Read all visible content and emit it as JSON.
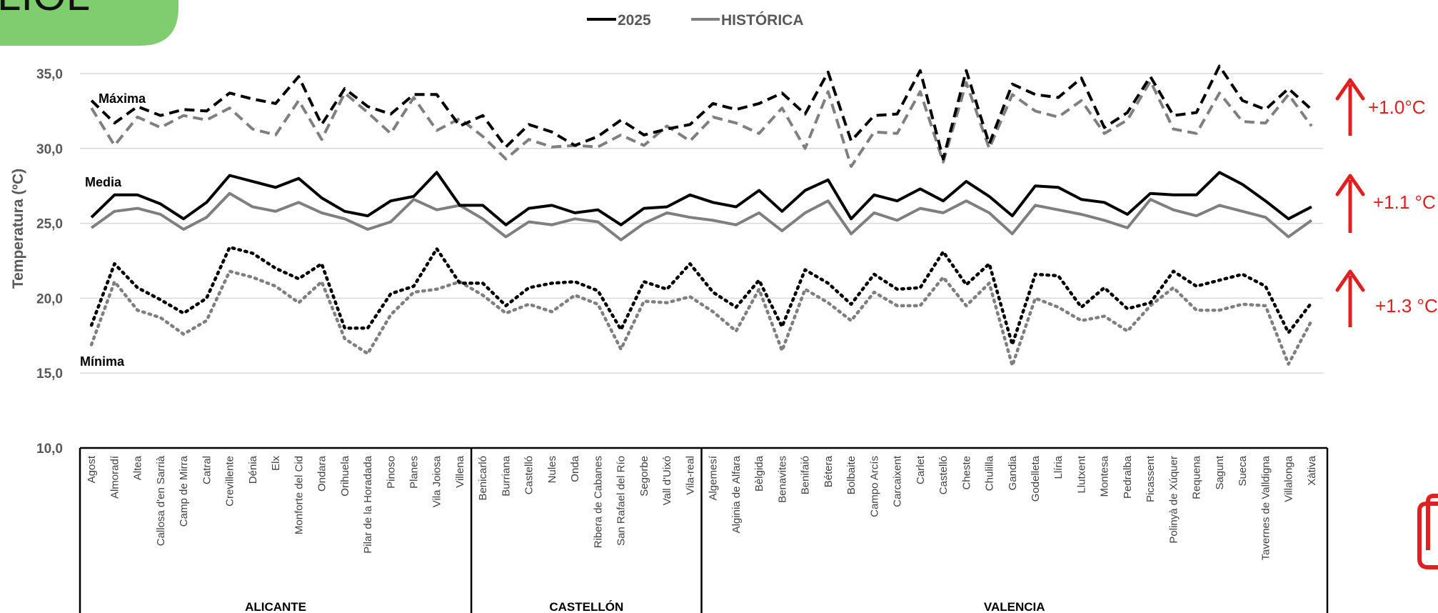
{
  "logo_text": "LIOL",
  "colors": {
    "series_2025": "#000000",
    "series_historica": "#7f7f7f",
    "grid": "#d9d9d9",
    "delta": "#e02020",
    "logo_bg": "#7fcd6e"
  },
  "legend": [
    "2025",
    "HISTÓRICA"
  ],
  "annotations": {
    "max_label": "Máxima",
    "media_label": "Media",
    "min_label": "Mínima",
    "delta_max": "+1.0°C",
    "delta_media": "+1.1 °C",
    "delta_min": "+1.3 °C"
  },
  "chart_data": {
    "type": "line",
    "ylabel": "Temperatura (ºC)",
    "ylim": [
      10,
      35
    ],
    "yticks": [
      "10,0",
      "15,0",
      "20,0",
      "25,0",
      "30,0",
      "35,0"
    ],
    "ytick_values": [
      10,
      15,
      20,
      25,
      30,
      35
    ],
    "grid": true,
    "legend_position": "top-center",
    "categories": [
      "Agost",
      "Almoradí",
      "Altea",
      "Callosa d'en Sarrià",
      "Camp de Mirra",
      "Catral",
      "Crevillente",
      "Dénia",
      "Elx",
      "Monforte del Cid",
      "Ondara",
      "Orihuela",
      "Pilar de la Horadada",
      "Pinoso",
      "Planes",
      "Vila Joiosa",
      "Villena",
      "Benicarló",
      "Burriana",
      "Castelló",
      "Nules",
      "Onda",
      "Ribera de Cabanes",
      "San Rafael del Río",
      "Segorbe",
      "Vall d'Uixó",
      "Vila-real",
      "Algemesí",
      "Alginia de Alfara",
      "Bèlgida",
      "Benavites",
      "Benifaió",
      "Bétera",
      "Bolbaite",
      "Campo Arcís",
      "Carcaixent",
      "Carlet",
      "Castelló",
      "Cheste",
      "Chulilla",
      "Gandia",
      "Godelleta",
      "Llíria",
      "Llutxent",
      "Montesa",
      "Pedralba",
      "Picassent",
      "Polinyà de Xúquer",
      "Requena",
      "Sagunt",
      "Sueca",
      "Tavernes de Valldigna",
      "Villalonga",
      "Xàtiva"
    ],
    "groups": [
      {
        "name": "ALICANTE",
        "start": 0,
        "count": 17
      },
      {
        "name": "CASTELLÓN",
        "start": 17,
        "count": 10
      },
      {
        "name": "VALENCIA",
        "start": 27,
        "count": 27
      }
    ],
    "series": [
      {
        "name": "2025",
        "metric": "max",
        "values": [
          33.2,
          31.7,
          32.8,
          32.2,
          32.6,
          32.5,
          33.7,
          33.3,
          33.0,
          34.8,
          31.6,
          34.0,
          32.8,
          32.3,
          33.6,
          33.6,
          31.5,
          32.2,
          30.1,
          31.6,
          31.1,
          30.2,
          30.8,
          31.9,
          30.9,
          31.3,
          31.6,
          33.0,
          32.6,
          33.0,
          33.7,
          32.3,
          35.1,
          30.5,
          32.2,
          32.3,
          35.2,
          29.3,
          35.2,
          30.3,
          34.3,
          33.6,
          33.4,
          34.7,
          31.4,
          32.4,
          34.8,
          32.2,
          32.4,
          35.5,
          33.2,
          32.6,
          34.0,
          32.6
        ]
      },
      {
        "name": "HISTÓRICA",
        "metric": "max",
        "values": [
          32.7,
          30.2,
          32.1,
          31.4,
          32.2,
          31.9,
          32.7,
          31.3,
          30.9,
          33.2,
          30.6,
          33.7,
          32.4,
          31.0,
          33.4,
          31.2,
          32.0,
          30.8,
          29.3,
          30.6,
          30.1,
          30.2,
          30.1,
          30.9,
          30.2,
          31.5,
          30.5,
          32.1,
          31.7,
          31.0,
          32.7,
          30.0,
          33.8,
          28.8,
          31.1,
          31.0,
          33.8,
          29.1,
          34.4,
          30.0,
          33.6,
          32.5,
          32.1,
          33.2,
          31.0,
          31.9,
          34.5,
          31.3,
          31.0,
          33.7,
          31.8,
          31.7,
          33.6,
          31.5
        ]
      },
      {
        "name": "2025",
        "metric": "media",
        "values": [
          25.4,
          26.9,
          26.9,
          26.3,
          25.3,
          26.4,
          28.2,
          27.8,
          27.4,
          28.0,
          26.7,
          25.8,
          25.5,
          26.5,
          26.8,
          28.4,
          26.2,
          26.2,
          24.9,
          26.0,
          26.2,
          25.7,
          25.9,
          24.9,
          26.0,
          26.1,
          26.9,
          26.4,
          26.1,
          27.2,
          25.8,
          27.2,
          27.9,
          25.3,
          26.9,
          26.5,
          27.3,
          26.5,
          27.8,
          26.8,
          25.5,
          27.5,
          27.4,
          26.6,
          26.4,
          25.6,
          27.0,
          26.9,
          26.9,
          28.4,
          27.6,
          26.5,
          25.3,
          26.1
        ]
      },
      {
        "name": "HISTÓRICA",
        "metric": "media",
        "values": [
          24.7,
          25.8,
          26.0,
          25.6,
          24.6,
          25.4,
          27.0,
          26.1,
          25.8,
          26.4,
          25.7,
          25.3,
          24.6,
          25.1,
          26.6,
          25.9,
          26.2,
          25.3,
          24.1,
          25.1,
          24.9,
          25.3,
          25.1,
          23.9,
          25.0,
          25.7,
          25.4,
          25.2,
          24.9,
          25.7,
          24.5,
          25.7,
          26.5,
          24.3,
          25.7,
          25.2,
          26.0,
          25.7,
          26.5,
          25.7,
          24.3,
          26.2,
          25.9,
          25.6,
          25.2,
          24.7,
          26.6,
          25.9,
          25.5,
          26.2,
          25.8,
          25.4,
          24.1,
          25.2
        ]
      },
      {
        "name": "2025",
        "metric": "min",
        "values": [
          18.2,
          22.3,
          20.7,
          19.9,
          19.0,
          20.0,
          23.4,
          23.0,
          22.0,
          21.3,
          22.3,
          18.0,
          18.0,
          20.3,
          20.8,
          23.3,
          21.0,
          21.0,
          19.5,
          20.7,
          21.0,
          21.1,
          20.5,
          17.9,
          21.1,
          20.6,
          22.3,
          20.4,
          19.4,
          21.2,
          18.1,
          21.9,
          21.0,
          19.6,
          21.6,
          20.6,
          20.7,
          23.1,
          20.9,
          22.3,
          16.9,
          21.6,
          21.5,
          19.4,
          20.7,
          19.3,
          19.7,
          21.8,
          20.8,
          21.2,
          21.6,
          20.8,
          17.7,
          19.7
        ]
      },
      {
        "name": "HISTÓRICA",
        "metric": "min",
        "values": [
          16.9,
          21.1,
          19.2,
          18.7,
          17.6,
          18.5,
          21.8,
          21.4,
          20.8,
          19.7,
          21.1,
          17.3,
          16.3,
          18.9,
          20.4,
          20.6,
          21.1,
          20.2,
          19.0,
          19.6,
          19.1,
          20.2,
          19.6,
          16.6,
          19.8,
          19.7,
          20.1,
          19.1,
          17.8,
          20.6,
          16.5,
          20.6,
          19.7,
          18.5,
          20.4,
          19.5,
          19.5,
          21.4,
          19.5,
          21.0,
          15.5,
          20.0,
          19.4,
          18.5,
          18.8,
          17.8,
          19.5,
          20.7,
          19.2,
          19.2,
          19.6,
          19.5,
          15.6,
          18.5
        ]
      }
    ]
  }
}
